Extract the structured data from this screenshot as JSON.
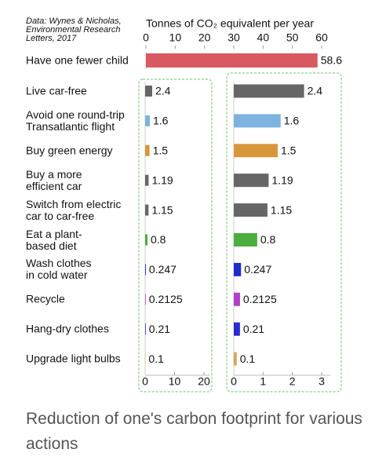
{
  "source": "Data: Wynes & Nicholas,\nEnvironmental Research\nLetters, 2017",
  "caption": "Reduction of one's carbon footprint for various actions",
  "chart_data": [
    {
      "type": "bar",
      "orientation": "horizontal",
      "title": "Tonnes of CO₂ equivalent per year",
      "categories": [
        "Have one fewer child"
      ],
      "values": [
        58.6
      ],
      "colors": [
        "#d85a60"
      ],
      "xlim": [
        0,
        62
      ],
      "xticks": [
        0,
        10,
        20,
        30,
        40,
        50,
        60
      ]
    },
    {
      "type": "bar",
      "orientation": "horizontal",
      "categories": [
        "Live car-free",
        "Avoid one round-trip\nTransatlantic flight",
        "Buy green energy",
        "Buy a more\nefficient car",
        "Switch from electric\ncar to car-free",
        "Eat a plant-\nbased diet",
        "Wash clothes\nin cold water",
        "Recycle",
        "Hang-dry clothes",
        "Upgrade light bulbs"
      ],
      "values": [
        2.4,
        1.6,
        1.5,
        1.19,
        1.15,
        0.8,
        0.247,
        0.2125,
        0.21,
        0.1
      ],
      "colors": [
        "#666666",
        "#7db3de",
        "#d8963a",
        "#666666",
        "#666666",
        "#4cae3e",
        "#1f2ccc",
        "#b13fc6",
        "#2a2ad0",
        "#d9a45a"
      ],
      "xlim": [
        0,
        22
      ],
      "xticks": [
        0,
        10,
        20
      ]
    },
    {
      "type": "bar",
      "orientation": "horizontal",
      "values": [
        2.4,
        1.6,
        1.5,
        1.19,
        1.15,
        0.8,
        0.247,
        0.2125,
        0.21,
        0.1
      ],
      "colors": [
        "#666666",
        "#7db3de",
        "#d8963a",
        "#666666",
        "#666666",
        "#4cae3e",
        "#1f2ccc",
        "#b13fc6",
        "#2a2ad0",
        "#d9a45a"
      ],
      "xlim": [
        0,
        3.3
      ],
      "xticks": [
        0,
        1,
        2,
        3
      ]
    }
  ]
}
